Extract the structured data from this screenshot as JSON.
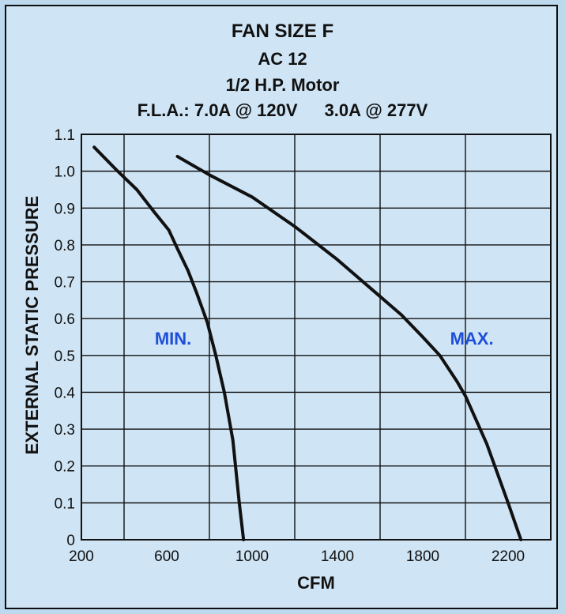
{
  "header": {
    "title": "FAN SIZE F",
    "model": "AC 12",
    "motor": "1/2 H.P. Motor",
    "fla_label": "F.L.A.:",
    "fla_120": "7.0A @ 120V",
    "fla_277": "3.0A @ 277V"
  },
  "colors": {
    "background": "#cfe4f4",
    "grid": "#111111",
    "curve": "#111111",
    "label_accent": "#1e4fd8"
  },
  "chart_data": {
    "type": "line",
    "title": "FAN SIZE F",
    "xlabel": "CFM",
    "ylabel": "EXTERNAL STATIC PRESSURE",
    "xlim": [
      200,
      2400
    ],
    "ylim": [
      0,
      1.1
    ],
    "x_ticks": [
      200,
      600,
      1000,
      1400,
      1800,
      2200
    ],
    "x_tick_labels": [
      "200",
      "600",
      "1000",
      "1400",
      "1800",
      "2200"
    ],
    "y_ticks": [
      0,
      0.1,
      0.2,
      0.3,
      0.4,
      0.5,
      0.6,
      0.7,
      0.8,
      0.9,
      1.0,
      1.1
    ],
    "y_tick_labels": [
      "0",
      "0.1",
      "0.2",
      "0.3",
      "0.4",
      "0.5",
      "0.6",
      "0.7",
      "0.8",
      "0.9",
      "1.0",
      "1.1"
    ],
    "x_minor_gridlines": [
      400,
      800,
      1200,
      1600,
      2000,
      2400
    ],
    "grid": true,
    "series": [
      {
        "name": "MIN.",
        "x": [
          260,
          370,
          460,
          540,
          610,
          650,
          700,
          740,
          790,
          830,
          870,
          910,
          940,
          960
        ],
        "y": [
          1.065,
          1.0,
          0.95,
          0.89,
          0.84,
          0.79,
          0.73,
          0.67,
          0.59,
          0.5,
          0.4,
          0.27,
          0.1,
          0.0
        ]
      },
      {
        "name": "MAX.",
        "x": [
          650,
          800,
          1000,
          1200,
          1400,
          1600,
          1700,
          1800,
          1880,
          1960,
          2000,
          2100,
          2200,
          2260
        ],
        "y": [
          1.04,
          0.99,
          0.93,
          0.85,
          0.76,
          0.66,
          0.61,
          0.55,
          0.5,
          0.43,
          0.39,
          0.26,
          0.1,
          0.0
        ]
      }
    ],
    "annotations": [
      {
        "text": "MIN.",
        "series": 0,
        "anchor_x": 630,
        "anchor_y": 0.53
      },
      {
        "text": "MAX.",
        "series": 1,
        "anchor_x": 2030,
        "anchor_y": 0.53
      }
    ]
  }
}
